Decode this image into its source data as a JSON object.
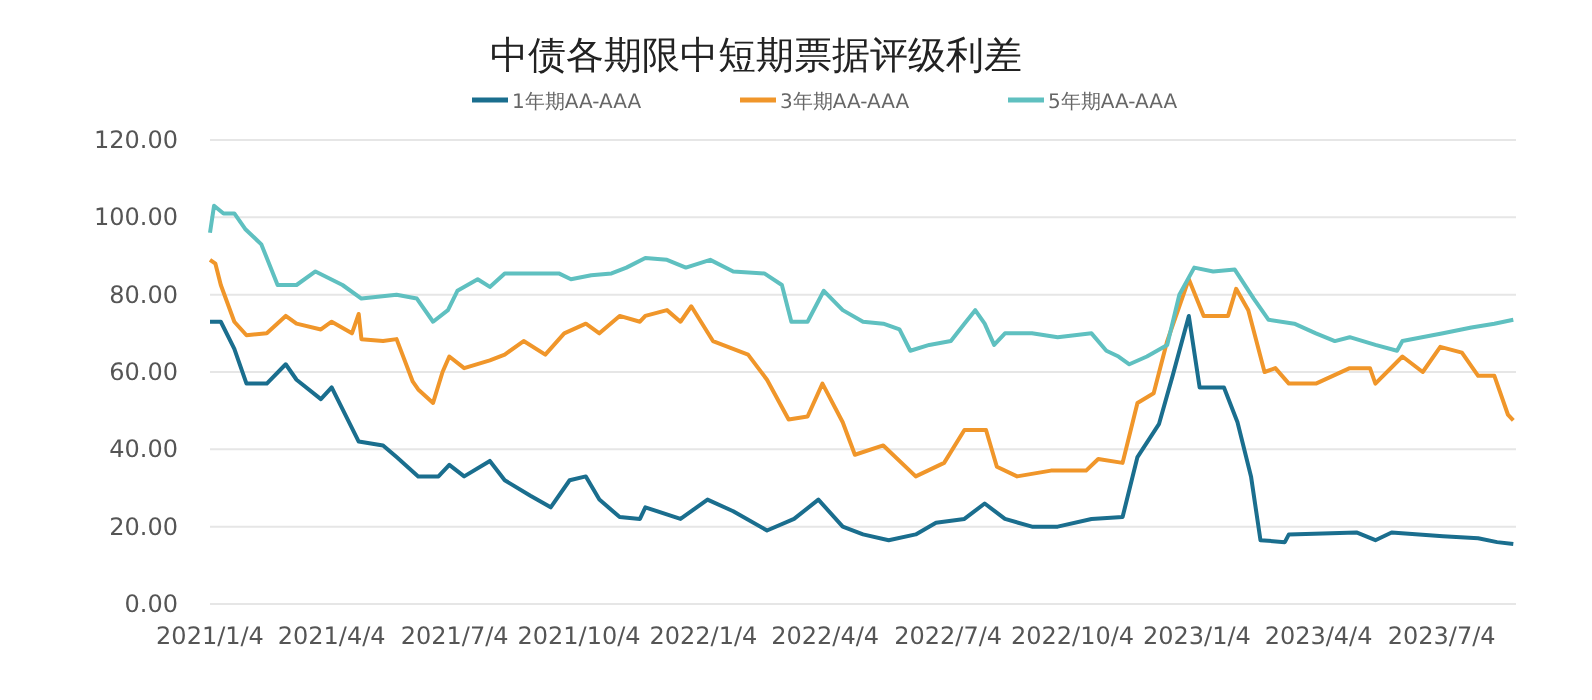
{
  "chart_data": {
    "type": "line",
    "title": "中债各期限中短期票据评级利差",
    "xlim": [
      "2021-01-04",
      "2023-08-28"
    ],
    "xticks": [
      {
        "value": "2021-01-04",
        "label": "2021/1/4"
      },
      {
        "value": "2021-04-04",
        "label": "2021/4/4"
      },
      {
        "value": "2021-07-04",
        "label": "2021/7/4"
      },
      {
        "value": "2021-10-04",
        "label": "2021/10/4"
      },
      {
        "value": "2022-01-04",
        "label": "2022/1/4"
      },
      {
        "value": "2022-04-04",
        "label": "2022/4/4"
      },
      {
        "value": "2022-07-04",
        "label": "2022/7/4"
      },
      {
        "value": "2022-10-04",
        "label": "2022/10/4"
      },
      {
        "value": "2023-01-04",
        "label": "2023/1/4"
      },
      {
        "value": "2023-04-04",
        "label": "2023/4/4"
      },
      {
        "value": "2023-07-04",
        "label": "2023/7/4"
      }
    ],
    "ylim": [
      0,
      120
    ],
    "yticks": [
      {
        "value": 0,
        "label": "0.00"
      },
      {
        "value": 20,
        "label": "20.00"
      },
      {
        "value": 40,
        "label": "40.00"
      },
      {
        "value": 60,
        "label": "60.00"
      },
      {
        "value": 80,
        "label": "80.00"
      },
      {
        "value": 100,
        "label": "100.00"
      },
      {
        "value": 120,
        "label": "120.00"
      }
    ],
    "grid": "y",
    "legend": "top",
    "marker": "none",
    "line_style": "solid",
    "series": [
      {
        "name": "1年期AA-AAA",
        "color": "#1a6e8e",
        "x": [
          "2021-01-04",
          "2021-01-12",
          "2021-01-22",
          "2021-01-31",
          "2021-02-15",
          "2021-03-01",
          "2021-03-09",
          "2021-03-27",
          "2021-04-04",
          "2021-04-24",
          "2021-05-12",
          "2021-05-22",
          "2021-06-07",
          "2021-06-22",
          "2021-06-30",
          "2021-07-11",
          "2021-07-30",
          "2021-08-10",
          "2021-08-29",
          "2021-09-13",
          "2021-09-27",
          "2021-10-09",
          "2021-10-19",
          "2021-11-03",
          "2021-11-18",
          "2021-11-22",
          "2021-12-18",
          "2022-01-07",
          "2022-01-26",
          "2022-02-20",
          "2022-03-12",
          "2022-03-30",
          "2022-04-17",
          "2022-05-02",
          "2022-05-21",
          "2022-06-10",
          "2022-06-25",
          "2022-07-16",
          "2022-07-31",
          "2022-08-15",
          "2022-09-04",
          "2022-09-23",
          "2022-10-18",
          "2022-11-10",
          "2022-11-21",
          "2022-12-07",
          "2022-12-17",
          "2022-12-29",
          "2023-01-06",
          "2023-01-24",
          "2023-02-03",
          "2023-02-13",
          "2023-02-20",
          "2023-03-10",
          "2023-03-13",
          "2023-05-02",
          "2023-05-16",
          "2023-05-28",
          "2023-07-05",
          "2023-07-31",
          "2023-08-14",
          "2023-08-26"
        ],
        "values": [
          73,
          73,
          66,
          57,
          57,
          62,
          58,
          53,
          56,
          42,
          41,
          38,
          33,
          33,
          36,
          33,
          37,
          32,
          28,
          25,
          32,
          33,
          27,
          22.5,
          22,
          25,
          22,
          27,
          24,
          19,
          22,
          27,
          20,
          18,
          16.5,
          18,
          21,
          22,
          26,
          22,
          20,
          20,
          22,
          22.5,
          38,
          46.6,
          59,
          74.5,
          56,
          56,
          47,
          33,
          16.5,
          16,
          18,
          18.5,
          16.5,
          18.5,
          17.5,
          17,
          16,
          15.5
        ]
      },
      {
        "name": "3年期AA-AAA",
        "color": "#f0962a",
        "x": [
          "2021-01-04",
          "2021-01-08",
          "2021-01-12",
          "2021-01-22",
          "2021-01-31",
          "2021-02-15",
          "2021-03-01",
          "2021-03-09",
          "2021-03-27",
          "2021-04-04",
          "2021-04-19",
          "2021-04-24",
          "2021-04-26",
          "2021-05-12",
          "2021-05-22",
          "2021-06-03",
          "2021-06-07",
          "2021-06-18",
          "2021-06-25",
          "2021-06-30",
          "2021-07-11",
          "2021-07-30",
          "2021-08-10",
          "2021-08-24",
          "2021-09-09",
          "2021-09-23",
          "2021-10-09",
          "2021-10-19",
          "2021-11-03",
          "2021-11-18",
          "2021-11-22",
          "2021-12-08",
          "2021-12-18",
          "2021-12-26",
          "2022-01-11",
          "2022-02-06",
          "2022-02-20",
          "2022-03-08",
          "2022-03-22",
          "2022-04-02",
          "2022-04-17",
          "2022-04-26",
          "2022-05-17",
          "2022-06-10",
          "2022-07-01",
          "2022-07-16",
          "2022-08-01",
          "2022-08-09",
          "2022-08-24",
          "2022-09-18",
          "2022-10-14",
          "2022-10-23",
          "2022-11-10",
          "2022-11-21",
          "2022-12-03",
          "2022-12-13",
          "2022-12-22",
          "2022-12-29",
          "2023-01-09",
          "2023-01-27",
          "2023-02-02",
          "2023-02-11",
          "2023-02-23",
          "2023-03-03",
          "2023-03-13",
          "2023-04-02",
          "2023-04-27",
          "2023-05-12",
          "2023-05-16",
          "2023-06-05",
          "2023-06-20",
          "2023-07-03",
          "2023-07-19",
          "2023-07-31",
          "2023-08-12",
          "2023-08-22",
          "2023-08-26"
        ],
        "values": [
          89,
          88,
          82.5,
          73,
          69.5,
          70,
          74.5,
          72.5,
          71,
          73,
          70,
          75,
          68.5,
          68,
          68.5,
          57.5,
          55.5,
          52,
          60,
          64,
          61,
          63,
          64.5,
          68,
          64.5,
          70,
          72.5,
          70,
          74.5,
          73,
          74.5,
          76,
          73,
          77,
          68,
          64.5,
          58,
          47.7,
          48.5,
          57,
          47,
          38.6,
          41,
          33,
          36.5,
          45,
          45,
          35.5,
          33,
          34.5,
          34.5,
          37.5,
          36.5,
          52,
          54.5,
          68,
          77,
          84,
          74.5,
          74.5,
          81.5,
          76,
          60,
          61,
          57,
          57,
          61,
          61,
          57,
          64,
          60,
          66.5,
          65,
          59,
          59,
          49,
          47.5
        ]
      },
      {
        "name": "5年期AA-AAA",
        "color": "#5fc0c0",
        "x": [
          "2021-01-04",
          "2021-01-07",
          "2021-01-14",
          "2021-01-22",
          "2021-01-30",
          "2021-02-11",
          "2021-02-23",
          "2021-03-09",
          "2021-03-23",
          "2021-04-12",
          "2021-04-26",
          "2021-05-22",
          "2021-06-06",
          "2021-06-18",
          "2021-06-29",
          "2021-07-06",
          "2021-07-21",
          "2021-07-30",
          "2021-08-10",
          "2021-08-29",
          "2021-09-19",
          "2021-09-28",
          "2021-10-13",
          "2021-10-28",
          "2021-11-08",
          "2021-11-22",
          "2021-12-08",
          "2021-12-22",
          "2022-01-09",
          "2022-01-26",
          "2022-02-18",
          "2022-03-03",
          "2022-03-10",
          "2022-03-22",
          "2022-04-03",
          "2022-04-17",
          "2022-05-02",
          "2022-05-17",
          "2022-05-29",
          "2022-06-06",
          "2022-06-20",
          "2022-07-06",
          "2022-07-16",
          "2022-07-24",
          "2022-07-31",
          "2022-08-07",
          "2022-08-15",
          "2022-09-04",
          "2022-09-23",
          "2022-10-18",
          "2022-10-29",
          "2022-11-07",
          "2022-11-15",
          "2022-11-28",
          "2022-12-13",
          "2022-12-22",
          "2023-01-02",
          "2023-01-16",
          "2023-02-01",
          "2023-02-15",
          "2023-02-26",
          "2023-03-17",
          "2023-04-02",
          "2023-04-16",
          "2023-04-27",
          "2023-05-16",
          "2023-06-01",
          "2023-06-05",
          "2023-07-05",
          "2023-07-26",
          "2023-08-12",
          "2023-08-26"
        ],
        "values": [
          96,
          103,
          101,
          101,
          97,
          93,
          82.5,
          82.5,
          86,
          82.5,
          79,
          80,
          79,
          73,
          76,
          81,
          84,
          82,
          85.5,
          85.5,
          85.5,
          84,
          85,
          85.5,
          87,
          89.5,
          89,
          87,
          89,
          86,
          85.5,
          82.5,
          73,
          73,
          81,
          76,
          73,
          72.5,
          71,
          65.5,
          67,
          68,
          72.5,
          76,
          72.5,
          67,
          70,
          70,
          69,
          70,
          65.5,
          64,
          62,
          64,
          67,
          80,
          87,
          86,
          86.5,
          79,
          73.5,
          72.5,
          70,
          68,
          69,
          67,
          65.5,
          68,
          70,
          71.5,
          72.5,
          73.5
        ]
      }
    ]
  }
}
